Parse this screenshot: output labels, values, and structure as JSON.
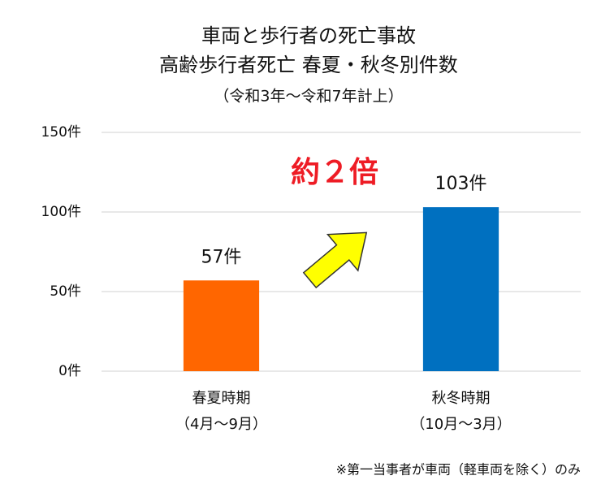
{
  "chart_data": {
    "type": "bar",
    "title": [
      "車両と歩行者の死亡事故",
      "高齢歩行者死亡 春夏・秋冬別件数"
    ],
    "subtitle": "（令和3年～令和7年計上）",
    "categories": [
      "春夏時期",
      "秋冬時期"
    ],
    "category_notes": [
      "（4月～9月）",
      "（10月～3月）"
    ],
    "values": [
      57,
      103
    ],
    "value_labels": [
      "57件",
      "103件"
    ],
    "colors": [
      "#ff6600",
      "#0070c0"
    ],
    "ylim": [
      0,
      150
    ],
    "yticks": [
      {
        "value": 0,
        "label": "0件"
      },
      {
        "value": 50,
        "label": "50件"
      },
      {
        "value": 100,
        "label": "100件"
      },
      {
        "value": 150,
        "label": "150件"
      }
    ],
    "grid": true,
    "annotation": "約２倍",
    "footnote": "※第一当事者が車両（軽車両を除く）のみ"
  }
}
